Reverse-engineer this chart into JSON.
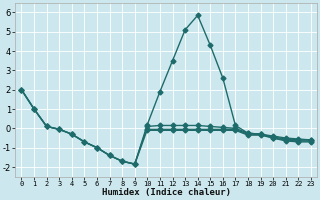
{
  "xlabel": "Humidex (Indice chaleur)",
  "xlim": [
    -0.5,
    23.5
  ],
  "ylim": [
    -2.5,
    6.5
  ],
  "yticks": [
    -2,
    -1,
    0,
    1,
    2,
    3,
    4,
    5,
    6
  ],
  "xticks": [
    0,
    1,
    2,
    3,
    4,
    5,
    6,
    7,
    8,
    9,
    10,
    11,
    12,
    13,
    14,
    15,
    16,
    17,
    18,
    19,
    20,
    21,
    22,
    23
  ],
  "bg_color": "#cce8ee",
  "grid_color": "#ffffff",
  "line_color": "#1e6b6b",
  "lines": [
    {
      "x": [
        0,
        1,
        2,
        3,
        4,
        5,
        6,
        7,
        8,
        9,
        10,
        11,
        12,
        13,
        14,
        15,
        16,
        17,
        18,
        19,
        20,
        21,
        22,
        23
      ],
      "y": [
        2.0,
        1.0,
        0.1,
        -0.05,
        -0.3,
        -0.7,
        -1.0,
        -1.4,
        -1.7,
        -1.85,
        0.1,
        0.15,
        0.15,
        0.15,
        0.15,
        0.1,
        0.05,
        0.0,
        -0.25,
        -0.3,
        -0.4,
        -0.5,
        -0.55,
        -0.6
      ],
      "marker": "D",
      "markersize": 2.5,
      "linewidth": 1.0
    },
    {
      "x": [
        0,
        1,
        2,
        3,
        4,
        5,
        6,
        7,
        8,
        9,
        10,
        11,
        12,
        13,
        14,
        15,
        16,
        17,
        18,
        19,
        20,
        21,
        22,
        23
      ],
      "y": [
        2.0,
        1.0,
        0.1,
        -0.05,
        -0.3,
        -0.7,
        -1.0,
        -1.4,
        -1.7,
        -1.85,
        0.2,
        1.9,
        3.5,
        5.1,
        5.85,
        4.3,
        2.6,
        0.15,
        -0.25,
        -0.3,
        -0.5,
        -0.65,
        -0.7,
        -0.7
      ],
      "marker": "D",
      "markersize": 2.5,
      "linewidth": 1.0
    },
    {
      "x": [
        0,
        1,
        2,
        3,
        4,
        5,
        6,
        7,
        8,
        9,
        10,
        11,
        12,
        13,
        14,
        15,
        16,
        17,
        18,
        19,
        20,
        21,
        22,
        23
      ],
      "y": [
        2.0,
        1.0,
        0.1,
        -0.05,
        -0.3,
        -0.7,
        -1.0,
        -1.4,
        -1.7,
        -1.85,
        -0.05,
        -0.05,
        -0.05,
        -0.05,
        -0.05,
        -0.05,
        -0.05,
        -0.05,
        -0.3,
        -0.3,
        -0.45,
        -0.55,
        -0.6,
        -0.6
      ],
      "marker": "D",
      "markersize": 2.5,
      "linewidth": 1.0
    },
    {
      "x": [
        10,
        11,
        12,
        13,
        14,
        15,
        16,
        17,
        18,
        19,
        20,
        21,
        22,
        23
      ],
      "y": [
        -0.1,
        -0.1,
        -0.1,
        -0.1,
        -0.1,
        -0.1,
        -0.1,
        -0.1,
        -0.35,
        -0.35,
        -0.5,
        -0.6,
        -0.65,
        -0.65
      ],
      "marker": "D",
      "markersize": 2.5,
      "linewidth": 1.0
    }
  ]
}
